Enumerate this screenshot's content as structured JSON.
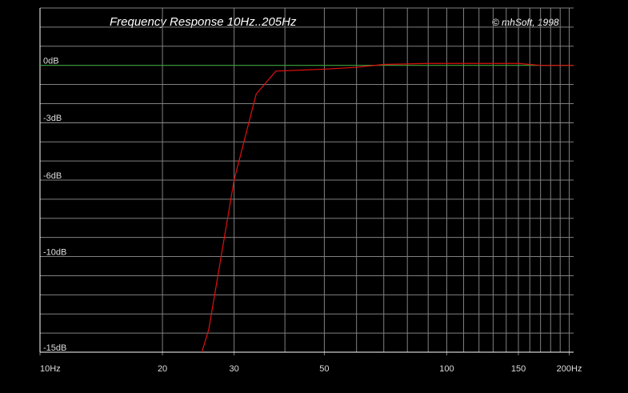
{
  "chart_data": {
    "type": "line",
    "title": "Frequency Response 10Hz..205Hz",
    "annotation": "© mhSoft, 1998",
    "log_x": true,
    "xlim": [
      10,
      205
    ],
    "ylim": [
      -15,
      3
    ],
    "xticks": [
      {
        "value": 10,
        "label": "10Hz"
      },
      20,
      30,
      50,
      100,
      150,
      {
        "value": 200,
        "label": "200Hz"
      }
    ],
    "yticks": [
      {
        "value": 0,
        "label": "0dB"
      },
      {
        "value": -3,
        "label": "-3dB"
      },
      {
        "value": -6,
        "label": "-6dB"
      },
      {
        "value": -10,
        "label": "-10dB"
      },
      {
        "value": -15,
        "label": "-15dB"
      }
    ],
    "xgrid": [
      20,
      30,
      40,
      50,
      60,
      70,
      80,
      90,
      100,
      110,
      120,
      130,
      140,
      150,
      160,
      170,
      180,
      190,
      200
    ],
    "ygrid": [
      3,
      2,
      1,
      -1,
      -2,
      -3,
      -4,
      -5,
      -6,
      -7,
      -8,
      -9,
      -10,
      -11,
      -12,
      -13,
      -14
    ],
    "reference_line": {
      "value": 0,
      "color": "#2e9e2e"
    },
    "grid_color": "#808080",
    "x": [
      25,
      26,
      30,
      34,
      38,
      50,
      60,
      70,
      90,
      150,
      170,
      205
    ],
    "series": [
      {
        "color": "#e01010",
        "values": [
          -15,
          -13.8,
          -6,
          -1.5,
          -0.3,
          -0.2,
          -0.1,
          0.05,
          0.1,
          0.1,
          0,
          0
        ]
      }
    ]
  }
}
